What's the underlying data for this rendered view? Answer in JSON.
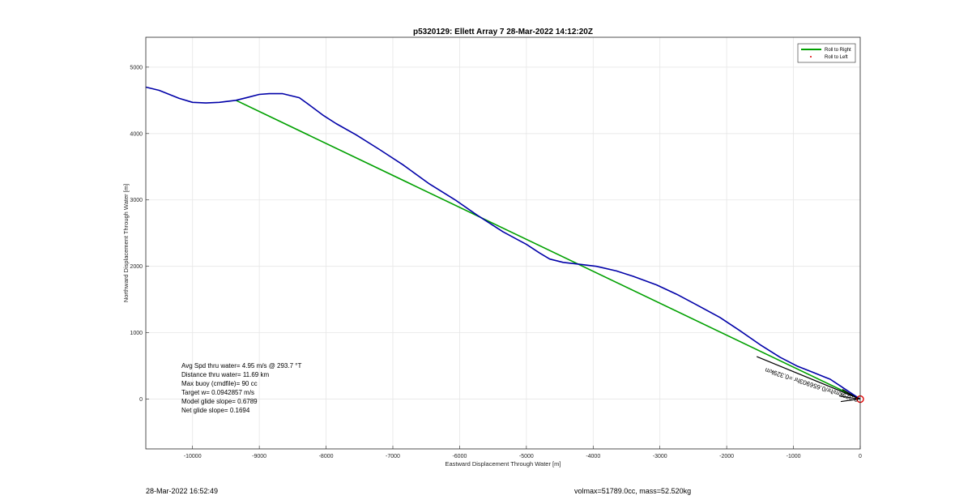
{
  "chart_data": {
    "type": "line",
    "title": "p5320129: Ellett Array 7 28-Mar-2022 14:12:20Z",
    "xlabel": "Eastward Displacement Through Water [m]",
    "ylabel": "Northward Displacement Through Water [m]",
    "xlim": [
      -10700,
      0
    ],
    "ylim": [
      -750,
      5450
    ],
    "xticks": [
      -10000,
      -9000,
      -8000,
      -7000,
      -6000,
      -5000,
      -4000,
      -3000,
      -2000,
      -1000,
      0
    ],
    "yticks": [
      0,
      1000,
      2000,
      3000,
      4000,
      5000
    ],
    "grid": true,
    "legend": {
      "position": "top-right",
      "entries": [
        {
          "label": "Roll to Right",
          "color": "#00a000",
          "marker": "line"
        },
        {
          "label": "Roll to Left",
          "color": "#e00000",
          "marker": "dot"
        }
      ]
    },
    "series": [
      {
        "color": "#0000a8",
        "x": [
          -10700,
          -10500,
          -10200,
          -10000,
          -9800,
          -9600,
          -9350,
          -9150,
          -9000,
          -8850,
          -8650,
          -8400,
          -8250,
          -8050,
          -7850,
          -7550,
          -7200,
          -6850,
          -6450,
          -6050,
          -5750,
          -5350,
          -5000,
          -4800,
          -4650,
          -4450,
          -4200,
          -3950,
          -3650,
          -3400,
          -3050,
          -2750,
          -2450,
          -2100,
          -1800,
          -1500,
          -1200,
          -950,
          -700,
          -450,
          -300,
          -150,
          0
        ],
        "y": [
          4700,
          4650,
          4530,
          4470,
          4460,
          4470,
          4500,
          4550,
          4590,
          4600,
          4600,
          4540,
          4430,
          4280,
          4150,
          3980,
          3760,
          3530,
          3240,
          2990,
          2780,
          2520,
          2330,
          2200,
          2110,
          2060,
          2030,
          2000,
          1930,
          1850,
          1720,
          1580,
          1420,
          1230,
          1030,
          820,
          630,
          500,
          400,
          300,
          200,
          100,
          0
        ]
      },
      {
        "name": "Roll to Right",
        "color": "#00a000",
        "x": [
          -9350,
          0
        ],
        "y": [
          4500,
          0
        ]
      }
    ],
    "annotations": {
      "stats": [
        "Avg Spd thru water=  4.95 m/s @ 293.7 °T",
        "Distance thru water= 11.69 km",
        "Max buoy (cmdfile)= 90 cc",
        "Target w= 0.0942857 m/s",
        "Model glide slope= 0.6789",
        "Net glide slope= 0.1694"
      ],
      "current_label": "0.329km/hr/0.656903hr =0.329km",
      "current_arrow": {
        "from": [
          -1550,
          640
        ],
        "to": [
          0,
          0
        ],
        "color": "#000000"
      },
      "end_marker": {
        "x": 0,
        "y": 0,
        "color": "#e00000"
      }
    }
  },
  "footer": {
    "timestamp": "28-Mar-2022 16:52:49",
    "summary": "volmax=51789.0cc, mass=52.520kg"
  }
}
